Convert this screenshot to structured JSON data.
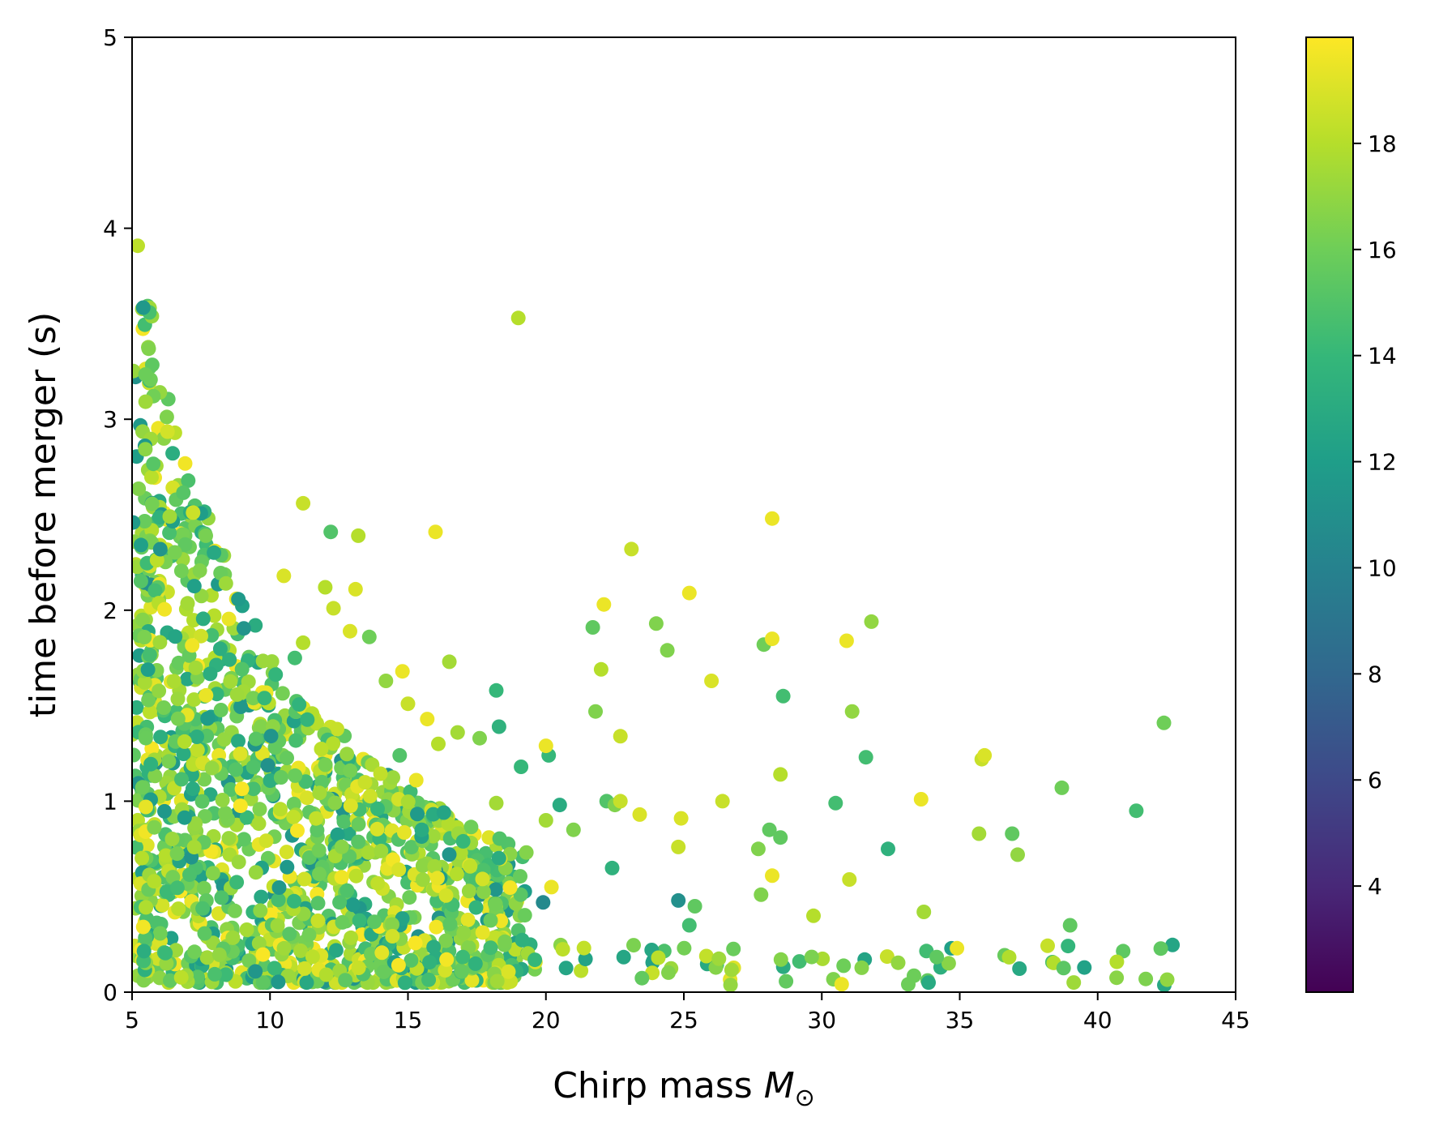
{
  "chart_data": {
    "type": "scatter",
    "title": "",
    "xlabel": "Chirp mass",
    "xlabel_symbol": "M",
    "xlabel_subscript": "⊙",
    "ylabel": "time before merger (s)",
    "xlim": [
      5,
      45
    ],
    "ylim": [
      0,
      5
    ],
    "xticks": [
      "5",
      "10",
      "15",
      "20",
      "25",
      "30",
      "35",
      "40",
      "45"
    ],
    "yticks": [
      "0",
      "1",
      "2",
      "3",
      "4",
      "5"
    ],
    "grid": false,
    "legend": "none",
    "colorbar": {
      "colormap": "viridis",
      "range": [
        2,
        20
      ],
      "ticks": [
        "4",
        "6",
        "8",
        "10",
        "12",
        "14",
        "16",
        "18"
      ],
      "colors": [
        "#440154",
        "#482878",
        "#3e4989",
        "#31688e",
        "#26828e",
        "#1f9e89",
        "#35b779",
        "#6ece58",
        "#b5de2b",
        "#fde725"
      ]
    },
    "generator": {
      "description_counts": [
        1400,
        90
      ],
      "seed": 7
    },
    "points": [
      [
        19.0,
        3.53,
        18.0
      ],
      [
        16.0,
        2.41,
        19.5
      ],
      [
        12.2,
        2.41,
        15.0
      ],
      [
        13.2,
        2.39,
        18.0
      ],
      [
        11.2,
        2.56,
        18.5
      ],
      [
        23.1,
        2.32,
        18.5
      ],
      [
        28.2,
        2.48,
        19.5
      ],
      [
        25.2,
        2.09,
        19.5
      ],
      [
        22.1,
        2.03,
        19.5
      ],
      [
        21.7,
        1.91,
        15.5
      ],
      [
        24.0,
        1.93,
        16.5
      ],
      [
        24.4,
        1.79,
        16.5
      ],
      [
        27.9,
        1.82,
        16.0
      ],
      [
        28.2,
        1.85,
        19.5
      ],
      [
        30.9,
        1.84,
        19.5
      ],
      [
        31.8,
        1.94,
        17.0
      ],
      [
        22.0,
        1.69,
        18.0
      ],
      [
        26.0,
        1.63,
        19.0
      ],
      [
        28.6,
        1.55,
        14.5
      ],
      [
        31.1,
        1.47,
        17.0
      ],
      [
        21.8,
        1.47,
        16.5
      ],
      [
        18.2,
        1.58,
        14.0
      ],
      [
        18.3,
        1.39,
        13.5
      ],
      [
        16.5,
        1.73,
        17.5
      ],
      [
        22.7,
        1.34,
        18.5
      ],
      [
        17.6,
        1.33,
        16.5
      ],
      [
        19.1,
        1.18,
        14.0
      ],
      [
        20.1,
        1.24,
        14.0
      ],
      [
        20.0,
        1.29,
        19.5
      ],
      [
        16.8,
        1.36,
        17.5
      ],
      [
        31.6,
        1.23,
        14.5
      ],
      [
        35.8,
        1.22,
        18.5
      ],
      [
        35.9,
        1.24,
        19.0
      ],
      [
        42.4,
        1.41,
        16.0
      ],
      [
        38.7,
        1.07,
        16.0
      ],
      [
        41.4,
        0.95,
        14.5
      ],
      [
        33.6,
        1.01,
        19.5
      ],
      [
        30.5,
        0.99,
        14.5
      ],
      [
        28.5,
        1.14,
        18.0
      ],
      [
        26.4,
        1.0,
        18.5
      ],
      [
        22.2,
        1.0,
        15.0
      ],
      [
        22.5,
        0.98,
        16.5
      ],
      [
        22.7,
        1.0,
        18.5
      ],
      [
        23.4,
        0.93,
        19.0
      ],
      [
        24.9,
        0.91,
        19.0
      ],
      [
        24.8,
        0.76,
        18.5
      ],
      [
        27.7,
        0.75,
        16.5
      ],
      [
        28.1,
        0.85,
        15.5
      ],
      [
        28.5,
        0.81,
        15.5
      ],
      [
        32.4,
        0.75,
        13.5
      ],
      [
        35.7,
        0.83,
        17.5
      ],
      [
        36.9,
        0.83,
        15.5
      ],
      [
        37.1,
        0.72,
        17.0
      ],
      [
        28.2,
        0.61,
        19.5
      ],
      [
        27.8,
        0.51,
        16.5
      ],
      [
        31.0,
        0.59,
        18.5
      ],
      [
        29.7,
        0.4,
        18.0
      ],
      [
        33.7,
        0.42,
        17.5
      ],
      [
        39.0,
        0.35,
        15.5
      ],
      [
        34.9,
        0.23,
        19.5
      ],
      [
        22.4,
        0.65,
        13.5
      ],
      [
        24.8,
        0.48,
        11.0
      ],
      [
        25.4,
        0.45,
        15.5
      ],
      [
        25.2,
        0.35,
        14.5
      ],
      [
        19.9,
        0.47,
        10.5
      ],
      [
        20.2,
        0.55,
        19.5
      ],
      [
        20.5,
        0.98,
        13.0
      ],
      [
        20.0,
        0.9,
        17.5
      ],
      [
        21.0,
        0.85,
        16.5
      ],
      [
        18.2,
        0.99,
        17.5
      ],
      [
        15.5,
        0.85,
        13.0
      ],
      [
        13.9,
        0.96,
        14.0
      ],
      [
        16.3,
        0.94,
        12.5
      ],
      [
        17.0,
        0.79,
        14.0
      ],
      [
        14.2,
        1.63,
        17.0
      ],
      [
        13.6,
        1.86,
        16.0
      ],
      [
        12.9,
        1.89,
        19.0
      ],
      [
        13.1,
        2.11,
        19.0
      ],
      [
        12.0,
        2.12,
        18.0
      ],
      [
        12.3,
        2.01,
        18.5
      ],
      [
        10.5,
        2.18,
        19.0
      ],
      [
        11.2,
        1.83,
        18.0
      ],
      [
        10.9,
        1.75,
        14.5
      ],
      [
        9.8,
        1.54,
        14.0
      ],
      [
        15.3,
        1.11,
        19.5
      ],
      [
        14.8,
        1.68,
        19.5
      ],
      [
        15.0,
        1.51,
        18.5
      ],
      [
        15.7,
        1.43,
        19.5
      ],
      [
        16.1,
        1.3,
        18.0
      ],
      [
        14.7,
        1.24,
        15.0
      ]
    ]
  }
}
